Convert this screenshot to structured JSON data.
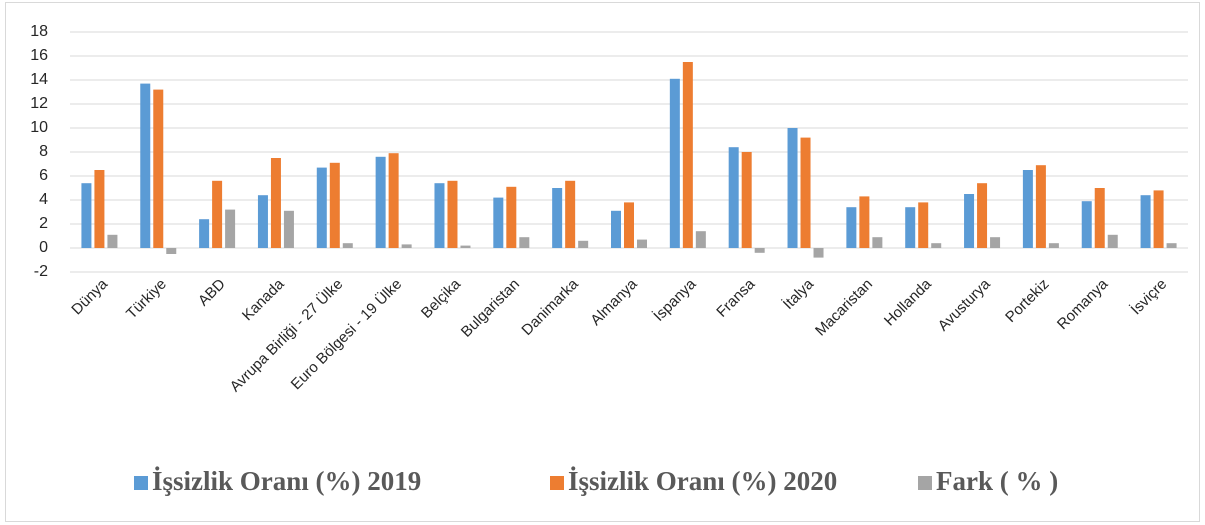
{
  "chart_data": {
    "type": "bar",
    "categories": [
      "Dünya",
      "Türkiye",
      "ABD",
      "Kanada",
      "Avrupa Birliği - 27 Ülke",
      "Euro Bölgesi - 19 Ülke",
      "Belçika",
      "Bulgaristan",
      "Danimarka",
      "Almanya",
      "İspanya",
      "Fransa",
      "İtalya",
      "Macaristan",
      "Hollanda",
      "Avusturya",
      "Portekiz",
      "Romanya",
      "İsviçre"
    ],
    "series": [
      {
        "name": "İşsizlik Oranı (%) 2019",
        "color": "#5b9bd5",
        "values": [
          5.4,
          13.7,
          2.4,
          4.4,
          6.7,
          7.6,
          5.4,
          4.2,
          5.0,
          3.1,
          14.1,
          8.4,
          10.0,
          3.4,
          3.4,
          4.5,
          6.5,
          3.9,
          4.4
        ]
      },
      {
        "name": "İşsizlik Oranı (%) 2020",
        "color": "#ed7d31",
        "values": [
          6.5,
          13.2,
          5.6,
          7.5,
          7.1,
          7.9,
          5.6,
          5.1,
          5.6,
          3.8,
          15.5,
          8.0,
          9.2,
          4.3,
          3.8,
          5.4,
          6.9,
          5.0,
          4.8
        ]
      },
      {
        "name": "Fark  ( % )",
        "color": "#a5a5a5",
        "values": [
          1.1,
          -0.5,
          3.2,
          3.1,
          0.4,
          0.3,
          0.2,
          0.9,
          0.6,
          0.7,
          1.4,
          -0.4,
          -0.8,
          0.9,
          0.4,
          0.9,
          0.4,
          1.1,
          0.4
        ]
      }
    ],
    "ylim": [
      -2,
      18
    ],
    "yticks": [
      -2,
      0,
      2,
      4,
      6,
      8,
      10,
      12,
      14,
      16,
      18
    ],
    "grid": true,
    "legend": "bottom"
  }
}
